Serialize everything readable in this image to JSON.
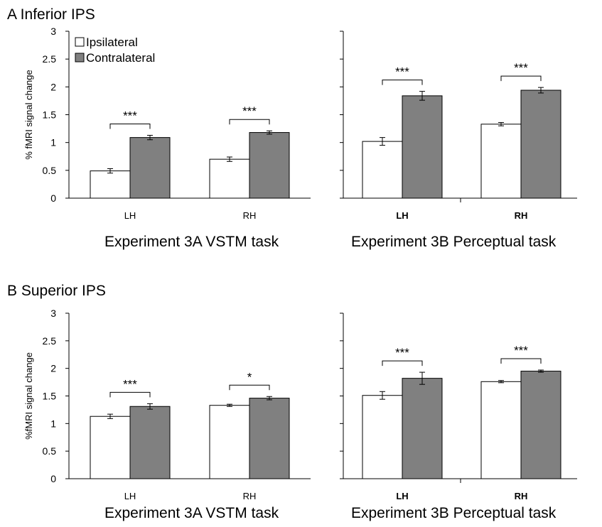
{
  "colors": {
    "ipsilateral": "#ffffff",
    "contralateral": "#808080",
    "stroke": "#000000"
  },
  "legend": {
    "ipsilateral": "Ipsilateral",
    "contralateral": "Contralateral"
  },
  "chart_data": [
    {
      "type": "bar",
      "panel_title": "A Inferior IPS",
      "ylabel": "% fMRI signal change",
      "ylim": [
        0,
        3
      ],
      "yticks": [
        "0",
        "0.5",
        "1",
        "1.5",
        "2",
        "2.5",
        "3"
      ],
      "subplots": [
        {
          "title": "Experiment 3A VSTM task",
          "categories": [
            "LH",
            "RH"
          ],
          "bold_ticks": false,
          "series": [
            {
              "name": "Ipsilateral",
              "values": [
                0.49,
                0.7
              ],
              "errors": [
                0.04,
                0.04
              ]
            },
            {
              "name": "Contralateral",
              "values": [
                1.09,
                1.18
              ],
              "errors": [
                0.04,
                0.03
              ]
            }
          ],
          "significance": [
            "***",
            "***"
          ]
        },
        {
          "title": "Experiment 3B Perceptual task",
          "categories": [
            "LH",
            "RH"
          ],
          "bold_ticks": true,
          "series": [
            {
              "name": "Ipsilateral",
              "values": [
                1.02,
                1.33
              ],
              "errors": [
                0.07,
                0.03
              ]
            },
            {
              "name": "Contralateral",
              "values": [
                1.84,
                1.94
              ],
              "errors": [
                0.08,
                0.05
              ]
            }
          ],
          "significance": [
            "***",
            "***"
          ]
        }
      ]
    },
    {
      "type": "bar",
      "panel_title": "B Superior IPS",
      "ylabel": "%fMRI signal change",
      "ylim": [
        0,
        3
      ],
      "yticks": [
        "0",
        "0.5",
        "1",
        "1.5",
        "2",
        "2.5",
        "3"
      ],
      "subplots": [
        {
          "title": "Experiment 3A VSTM task",
          "categories": [
            "LH",
            "RH"
          ],
          "bold_ticks": false,
          "series": [
            {
              "name": "Ipsilateral",
              "values": [
                1.13,
                1.33
              ],
              "errors": [
                0.04,
                0.02
              ]
            },
            {
              "name": "Contralateral",
              "values": [
                1.31,
                1.46
              ],
              "errors": [
                0.05,
                0.03
              ]
            }
          ],
          "significance": [
            "***",
            "*"
          ]
        },
        {
          "title": "Experiment 3B Perceptual task",
          "categories": [
            "LH",
            "RH"
          ],
          "bold_ticks": true,
          "series": [
            {
              "name": "Ipsilateral",
              "values": [
                1.51,
                1.76
              ],
              "errors": [
                0.07,
                0.02
              ]
            },
            {
              "name": "Contralateral",
              "values": [
                1.82,
                1.95
              ],
              "errors": [
                0.11,
                0.02
              ]
            }
          ],
          "significance": [
            "***",
            "***"
          ]
        }
      ]
    }
  ]
}
